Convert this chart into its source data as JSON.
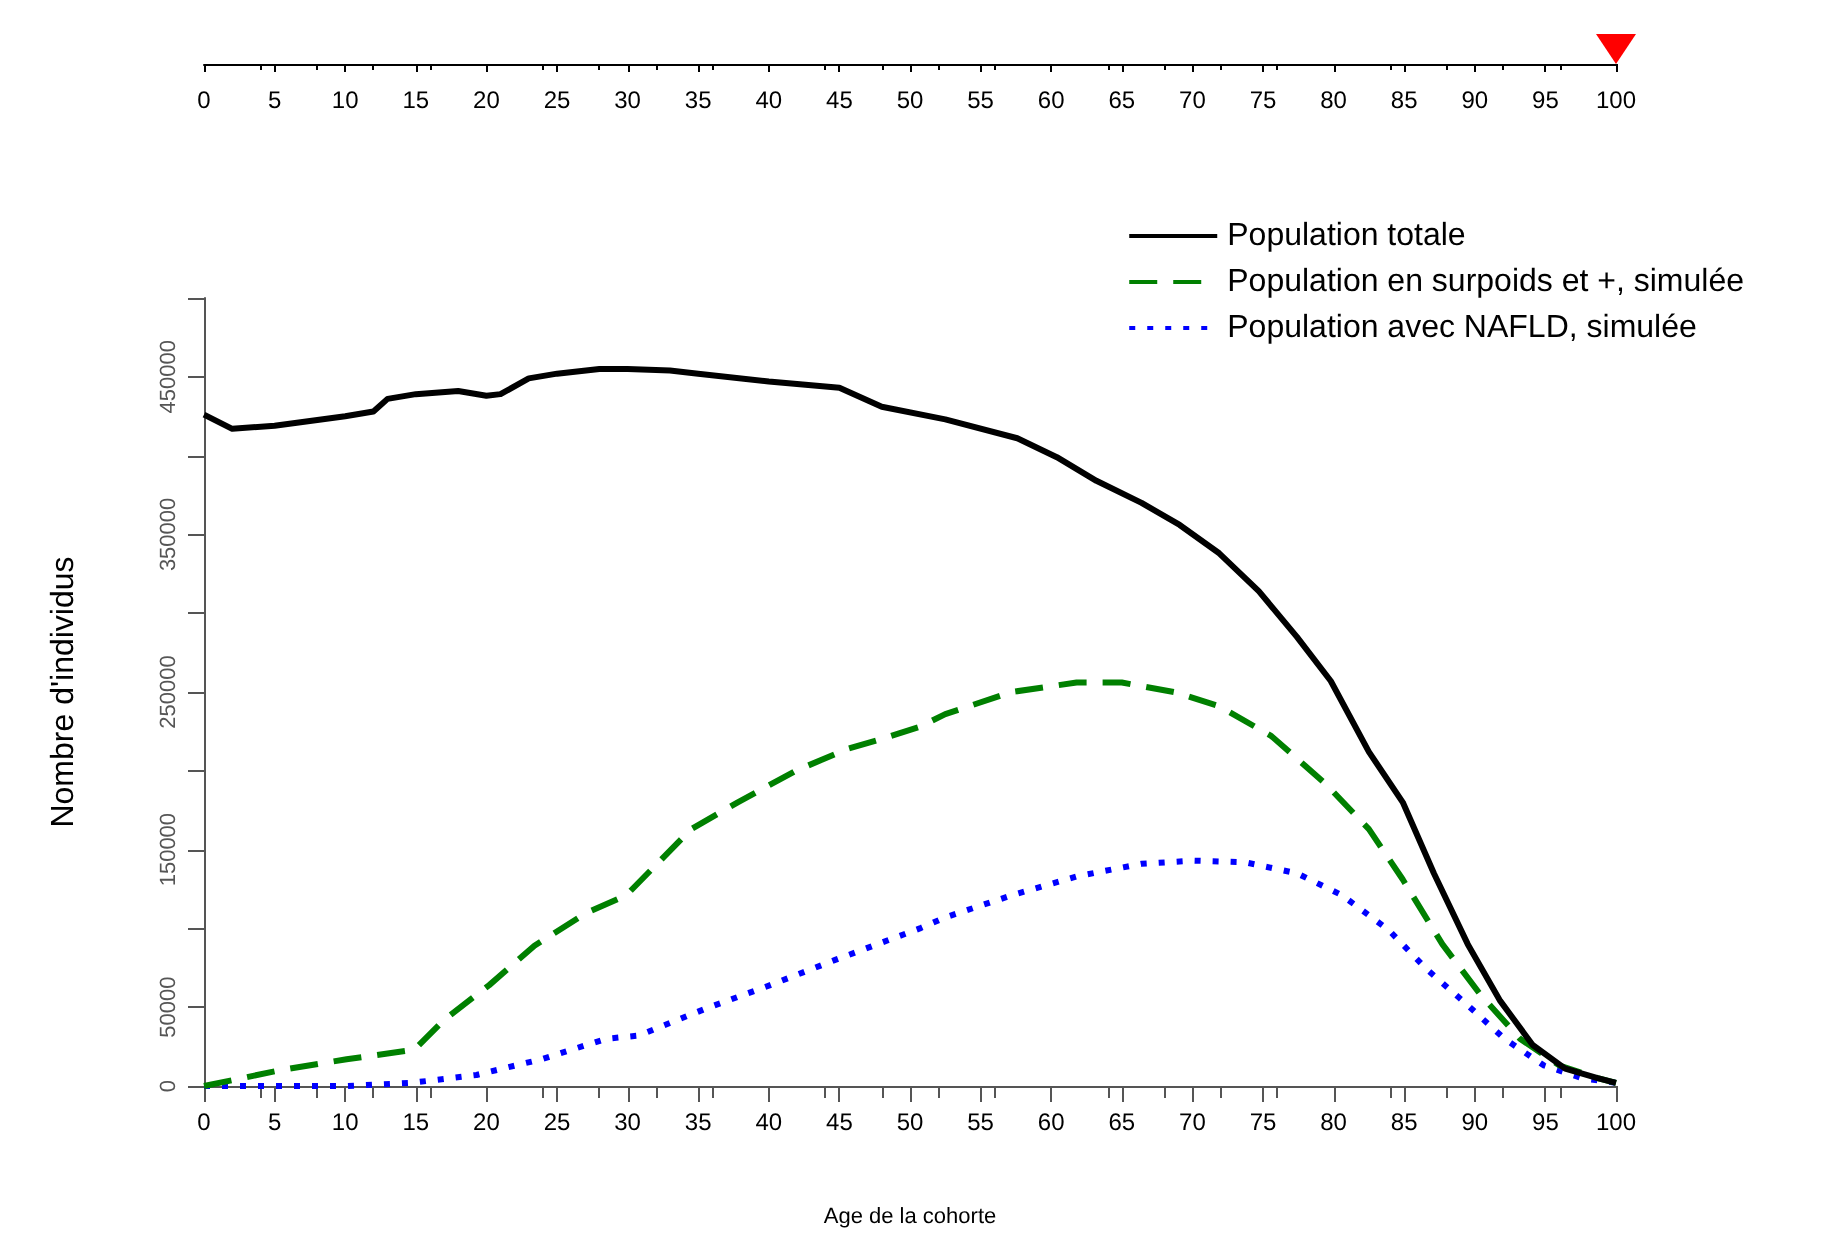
{
  "chart_data": {
    "type": "line",
    "xlabel": "Age de la cohorte",
    "ylabel": "Nombre d'individus",
    "xlim": [
      0,
      100
    ],
    "xticks": [
      0,
      5,
      10,
      15,
      20,
      25,
      30,
      35,
      40,
      45,
      50,
      55,
      60,
      65,
      70,
      75,
      80,
      85,
      90,
      95,
      100
    ],
    "ylim": [
      0,
      500000
    ],
    "yticks": [
      0,
      50000,
      {
        "value": 100000,
        "label": null
      },
      150000,
      {
        "value": 200000,
        "label": null
      },
      250000,
      {
        "value": 300000,
        "label": null
      },
      350000,
      {
        "value": 400000,
        "label": null
      },
      450000,
      {
        "value": 500000,
        "label": null
      }
    ],
    "x2lim": [
      0,
      100
    ],
    "x2ticks": [
      0,
      5,
      10,
      15,
      20,
      25,
      30,
      35,
      40,
      45,
      50,
      55,
      60,
      65,
      70,
      75,
      80,
      85,
      90,
      95,
      100
    ],
    "legend": "top right",
    "grid": false,
    "marker": "none",
    "series": [
      {
        "name": "Population totale",
        "color": "#000000",
        "line_style": "solid",
        "x": [
          0,
          2,
          5,
          10,
          12,
          13,
          15,
          18,
          20,
          21,
          23,
          25,
          28,
          30,
          33,
          35,
          40,
          45,
          48,
          52.5,
          57.6,
          60.4,
          63.2,
          66.4,
          69.1,
          71.9,
          74.7,
          77.4,
          79.8,
          82.5,
          84.9,
          87.1,
          89.5,
          91.8,
          94.1,
          96.4,
          98.7,
          100
        ],
        "values": [
          426000,
          417000,
          419000,
          425000,
          428000,
          436000,
          439000,
          441000,
          438000,
          439000,
          449000,
          452000,
          455000,
          455000,
          454000,
          452000,
          447000,
          443000,
          431000,
          423000,
          411000,
          399000,
          384000,
          370000,
          356000,
          338000,
          314000,
          285000,
          257000,
          212000,
          180000,
          135000,
          90000,
          54000,
          26000,
          11000,
          5000,
          2000
        ]
      },
      {
        "name": "Population en surpoids et +, simulée",
        "color": "#008000",
        "line_style": "dashed",
        "x": [
          0,
          5.4,
          10.1,
          14.9,
          17,
          20.2,
          23.4,
          27.1,
          29.9,
          34.5,
          37.8,
          41.9,
          45.6,
          47.9,
          50.7,
          52.5,
          57.2,
          61.8,
          65,
          68.7,
          71.9,
          75.6,
          79.4,
          82.5,
          84.9,
          87.7,
          90.4,
          93.2,
          96,
          98.7,
          100
        ],
        "values": [
          0,
          10000,
          17000,
          23000,
          42000,
          64000,
          89000,
          110000,
          121000,
          163000,
          180000,
          200000,
          214000,
          220000,
          228000,
          236000,
          250000,
          256000,
          256000,
          250000,
          241000,
          222000,
          192000,
          163000,
          131000,
          90000,
          58000,
          30000,
          13000,
          5000,
          2000
        ]
      },
      {
        "name": "Population avec NAFLD, simulée",
        "color": "#0000ff",
        "line_style": "dotted",
        "x": [
          0,
          10.1,
          14.7,
          19.3,
          23.9,
          28.5,
          30.8,
          35.5,
          40.1,
          44.7,
          50.7,
          52.5,
          57.2,
          61.8,
          66.4,
          70.1,
          73.7,
          77.4,
          80.6,
          83.9,
          86.6,
          89.4,
          92.1,
          94.9,
          97.6,
          100
        ],
        "values": [
          0,
          0,
          2000,
          7000,
          17000,
          30000,
          32000,
          49000,
          64000,
          80000,
          100000,
          107000,
          121000,
          133000,
          141000,
          143000,
          142000,
          135000,
          121000,
          99000,
          74000,
          52000,
          30000,
          13000,
          5000,
          2000
        ]
      }
    ]
  }
}
